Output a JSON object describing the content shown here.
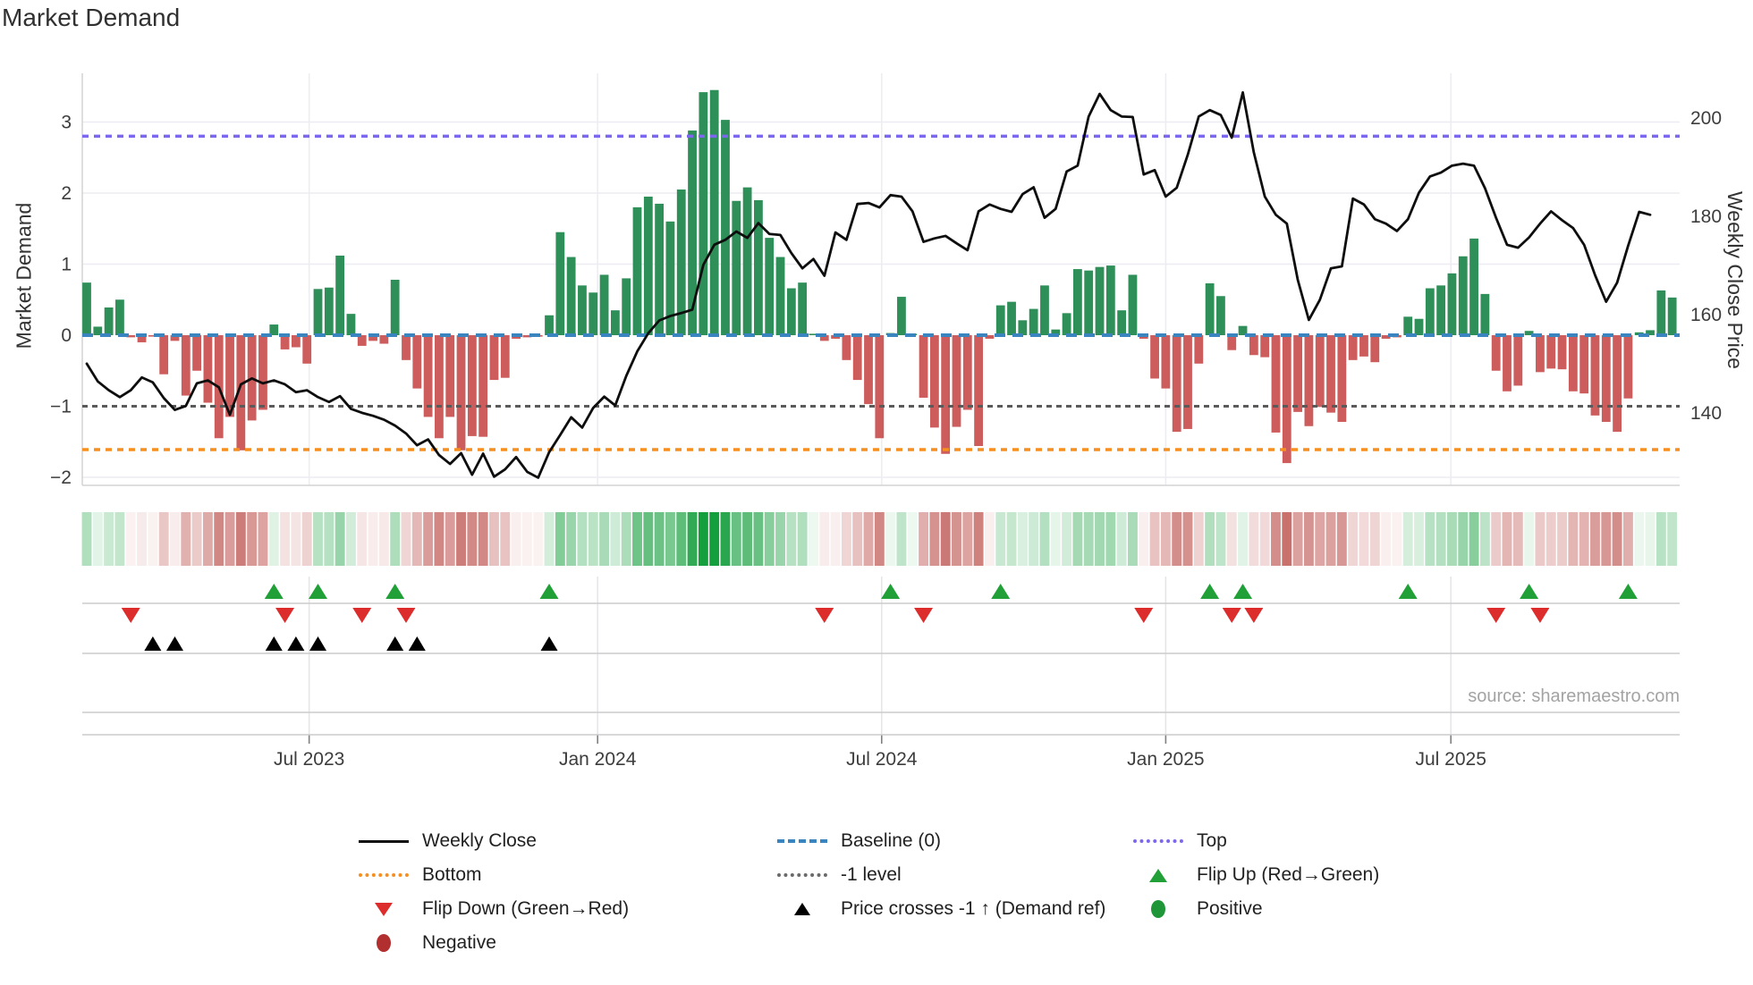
{
  "title": "Market Demand",
  "source": "source: sharemaestro.com",
  "y_left_label": "Market Demand",
  "y_right_label": "Weekly Close Price",
  "colors": {
    "bar_green": "#2e8f58",
    "bar_red": "#cd5c5c",
    "baseline": "#3a85c0",
    "top": "#7b68ee",
    "bottom": "#f68f20",
    "minus1": "#5a5a5a",
    "price_line": "#0e0e0e",
    "flip_up": "#21a038",
    "flip_down": "#dd2c2c",
    "price_cross": "#000000",
    "heat_green": "#149e3c",
    "heat_red": "#b94a45",
    "grid": "#ececf2",
    "spine": "#d4d4d4",
    "tick_text": "#3d3d3d"
  },
  "chart_data": {
    "type": "bar+line+heatmap",
    "title": "Market Demand",
    "ylabel_left": "Market Demand",
    "ylabel_right": "Weekly Close Price",
    "demand_axis_range": [
      -2.15,
      3.7
    ],
    "price_axis_range": [
      124.7,
      208.4
    ],
    "grid": true,
    "levels": {
      "baseline": 0,
      "top": 2.8,
      "bottom": -1.61,
      "minus1": -1
    },
    "demand_ticks": [
      {
        "label": "3",
        "value": 3
      },
      {
        "label": "2",
        "value": 2
      },
      {
        "label": "1",
        "value": 1
      },
      {
        "label": "0",
        "value": 0
      },
      {
        "label": "−1",
        "value": -1
      },
      {
        "label": "−2",
        "value": -2
      }
    ],
    "price_ticks": [
      {
        "label": "200",
        "value": 200
      },
      {
        "label": "180",
        "value": 180
      },
      {
        "label": "160",
        "value": 160
      },
      {
        "label": "140",
        "value": 140
      }
    ],
    "x_axis_ticks": [
      {
        "label": "Jul 2023",
        "week": 20.2
      },
      {
        "label": "Jan 2024",
        "week": 46.4
      },
      {
        "label": "Jul 2024",
        "week": 72.2
      },
      {
        "label": "Jan 2025",
        "week": 98.0
      },
      {
        "label": "Jul 2025",
        "week": 123.9
      }
    ],
    "demand": [
      0.74,
      0.12,
      0.39,
      0.5,
      -0.03,
      -0.1,
      -0.02,
      -0.55,
      -0.08,
      -0.85,
      -0.5,
      -0.95,
      -1.45,
      -1.15,
      -1.62,
      -1.2,
      -1.05,
      0.15,
      -0.2,
      -0.17,
      -0.4,
      0.65,
      0.67,
      1.12,
      0.3,
      -0.15,
      -0.08,
      -0.12,
      0.78,
      -0.35,
      -0.75,
      -1.15,
      -1.45,
      -1.15,
      -1.62,
      -1.42,
      -1.43,
      -0.63,
      -0.6,
      -0.05,
      -0.03,
      -0.02,
      0.28,
      1.45,
      1.1,
      0.7,
      0.6,
      0.85,
      0.35,
      0.8,
      1.8,
      1.95,
      1.85,
      1.6,
      2.05,
      2.88,
      3.42,
      3.45,
      3.03,
      1.89,
      2.08,
      1.9,
      1.37,
      1.1,
      0.66,
      0.74,
      0.02,
      -0.08,
      -0.05,
      -0.35,
      -0.63,
      -0.97,
      -1.45,
      0.03,
      0.54,
      0.02,
      -0.88,
      -1.3,
      -1.67,
      -1.29,
      -1.05,
      -1.56,
      -0.05,
      0.42,
      0.47,
      0.21,
      0.37,
      0.7,
      0.08,
      0.31,
      0.93,
      0.91,
      0.96,
      0.98,
      0.35,
      0.85,
      -0.05,
      -0.61,
      -0.75,
      -1.36,
      -1.32,
      -0.4,
      0.73,
      0.55,
      -0.21,
      0.13,
      -0.28,
      -0.31,
      -1.37,
      -1.8,
      -1.08,
      -1.28,
      -1.01,
      -1.09,
      -1.22,
      -0.35,
      -0.3,
      -0.38,
      -0.05,
      -0.03,
      0.26,
      0.23,
      0.66,
      0.7,
      0.87,
      1.11,
      1.36,
      0.58,
      -0.5,
      -0.79,
      -0.71,
      0.06,
      -0.52,
      -0.47,
      -0.48,
      -0.79,
      -0.82,
      -1.13,
      -1.22,
      -1.36,
      -0.89,
      0.04,
      0.07,
      0.63,
      0.53
    ],
    "price": [
      150.0,
      146.4,
      144.6,
      143.2,
      144.6,
      147.2,
      146.2,
      143.0,
      140.6,
      141.4,
      146.0,
      146.6,
      145.2,
      139.6,
      145.8,
      147.0,
      146.0,
      146.6,
      145.8,
      144.2,
      144.6,
      143.2,
      142.2,
      143.4,
      140.8,
      140.0,
      139.4,
      138.6,
      137.4,
      135.8,
      133.4,
      134.6,
      131.4,
      129.6,
      131.8,
      127.4,
      131.7,
      127.0,
      128.5,
      131.0,
      128.0,
      126.8,
      132.0,
      135.5,
      139.1,
      137.0,
      141.0,
      143.3,
      141.5,
      147.5,
      152.5,
      156.2,
      158.8,
      159.7,
      160.3,
      161.0,
      170.1,
      174.2,
      175.2,
      176.9,
      175.6,
      178.6,
      176.4,
      176.2,
      172.5,
      169.4,
      171.3,
      167.9,
      176.7,
      175.2,
      182.5,
      182.7,
      181.8,
      184.3,
      184.0,
      181.0,
      174.8,
      175.5,
      176.0,
      174.5,
      173.1,
      181.0,
      182.4,
      181.5,
      180.9,
      184.5,
      185.9,
      179.7,
      181.5,
      189.1,
      190.3,
      200.3,
      204.9,
      201.6,
      200.3,
      200.2,
      188.5,
      189.4,
      184.0,
      185.8,
      192.5,
      200.3,
      201.6,
      200.6,
      196.0,
      205.2,
      193.0,
      184.0,
      180.3,
      178.5,
      167.0,
      158.9,
      163.0,
      169.4,
      169.8,
      183.6,
      182.4,
      179.4,
      178.5,
      177.0,
      179.4,
      184.8,
      188.1,
      188.9,
      190.3,
      190.7,
      190.3,
      185.7,
      179.7,
      174.2,
      173.6,
      175.7,
      178.5,
      181.0,
      179.2,
      177.6,
      174.2,
      168.0,
      162.6,
      166.5,
      174.0,
      180.9,
      180.3
    ],
    "flip_up_weeks": [
      17,
      21,
      28,
      42,
      73,
      83,
      102,
      105,
      120,
      131,
      140
    ],
    "flip_down_weeks": [
      4,
      18,
      25,
      29,
      67,
      76,
      96,
      104,
      106,
      128,
      132
    ],
    "price_cross_weeks": [
      6,
      8,
      17,
      19,
      21,
      28,
      30,
      42
    ]
  },
  "legend": {
    "col1": [
      {
        "label": "Weekly Close"
      },
      {
        "label": "Bottom"
      },
      {
        "label": "Flip Down (Green→Red)"
      },
      {
        "label": "Negative"
      }
    ],
    "col2": [
      {
        "label": "Baseline (0)"
      },
      {
        "label": "-1 level"
      },
      {
        "label": "Price crosses -1 ↑ (Demand ref)"
      }
    ],
    "col3": [
      {
        "label": "Top"
      },
      {
        "label": "Flip Up (Red→Green)"
      },
      {
        "label": "Positive"
      }
    ]
  }
}
